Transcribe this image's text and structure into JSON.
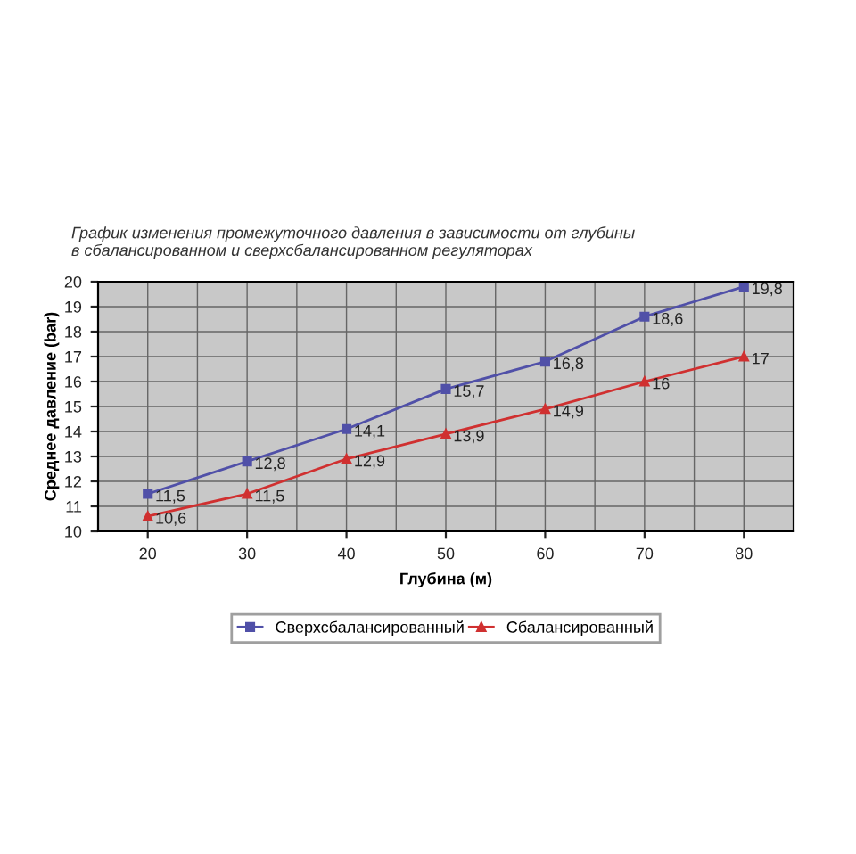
{
  "chart_data": {
    "type": "line",
    "title": "График изменения промежуточного давления в зависимости от глубины\nв сбалансированном и сверхсбалансированном регуляторах",
    "xlabel": "Глубина (м)",
    "ylabel": "Среднее давление (bar)",
    "categories": [
      "20",
      "30",
      "40",
      "50",
      "60",
      "70",
      "80"
    ],
    "series": [
      {
        "name": "Сверхсбалансированный",
        "color": "#5050a8",
        "marker": "square",
        "values": [
          11.5,
          12.8,
          14.1,
          15.7,
          16.8,
          18.6,
          19.8
        ],
        "value_labels": [
          "11,5",
          "12,8",
          "14,1",
          "15,7",
          "16,8",
          "18,6",
          "19,8"
        ]
      },
      {
        "name": "Сбалансированный",
        "color": "#d03030",
        "marker": "triangle",
        "values": [
          10.6,
          11.5,
          12.9,
          13.9,
          14.9,
          16,
          17
        ],
        "value_labels": [
          "10,6",
          "11,5",
          "12,9",
          "13,9",
          "14,9",
          "16",
          "17"
        ]
      }
    ],
    "ylim": [
      10,
      20
    ],
    "yticks": [
      10,
      11,
      12,
      13,
      14,
      15,
      16,
      17,
      18,
      19,
      20
    ],
    "grid": true,
    "legend": "bottom",
    "line_style": "solid"
  }
}
